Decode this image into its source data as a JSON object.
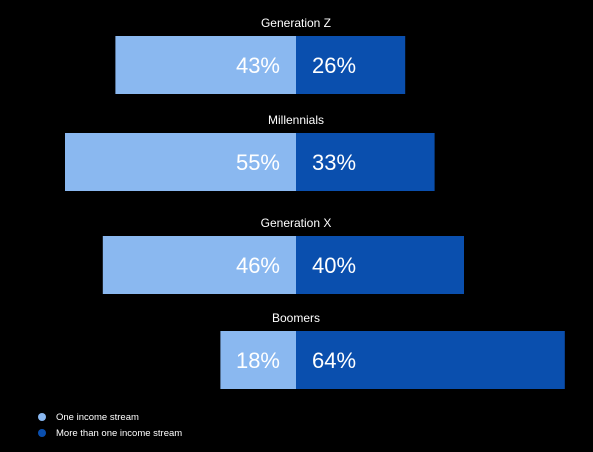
{
  "chart_data": {
    "type": "bar",
    "orientation": "horizontal-diverging",
    "categories": [
      "Generation Z",
      "Millennials",
      "Generation X",
      "Boomers"
    ],
    "series": [
      {
        "name": "One income stream",
        "values": [
          43,
          55,
          46,
          18
        ],
        "color": "#8ab8f0",
        "value_suffix": "%"
      },
      {
        "name": "More than one income stream",
        "values": [
          26,
          33,
          40,
          64
        ],
        "color": "#0a4fae",
        "value_suffix": "%"
      }
    ],
    "value_labels": [
      [
        "43%",
        "55%",
        "46%",
        "18%"
      ],
      [
        "26%",
        "33%",
        "40%",
        "64%"
      ]
    ],
    "legend_position": "bottom-left",
    "grid": false
  }
}
